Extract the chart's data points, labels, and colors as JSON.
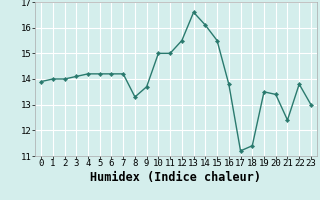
{
  "x": [
    0,
    1,
    2,
    3,
    4,
    5,
    6,
    7,
    8,
    9,
    10,
    11,
    12,
    13,
    14,
    15,
    16,
    17,
    18,
    19,
    20,
    21,
    22,
    23
  ],
  "y": [
    13.9,
    14.0,
    14.0,
    14.1,
    14.2,
    14.2,
    14.2,
    14.2,
    13.3,
    13.7,
    15.0,
    15.0,
    15.5,
    16.6,
    16.1,
    15.5,
    13.8,
    11.2,
    11.4,
    13.5,
    13.4,
    12.4,
    13.8,
    13.0
  ],
  "xlabel": "Humidex (Indice chaleur)",
  "ylim": [
    11,
    17
  ],
  "xlim": [
    -0.5,
    23.5
  ],
  "yticks": [
    11,
    12,
    13,
    14,
    15,
    16,
    17
  ],
  "xticks": [
    0,
    1,
    2,
    3,
    4,
    5,
    6,
    7,
    8,
    9,
    10,
    11,
    12,
    13,
    14,
    15,
    16,
    17,
    18,
    19,
    20,
    21,
    22,
    23
  ],
  "line_color": "#2a7a6e",
  "marker_color": "#2a7a6e",
  "bg_color": "#d4eeec",
  "grid_color": "#ffffff",
  "tick_fontsize": 6.5,
  "xlabel_fontsize": 8.5
}
